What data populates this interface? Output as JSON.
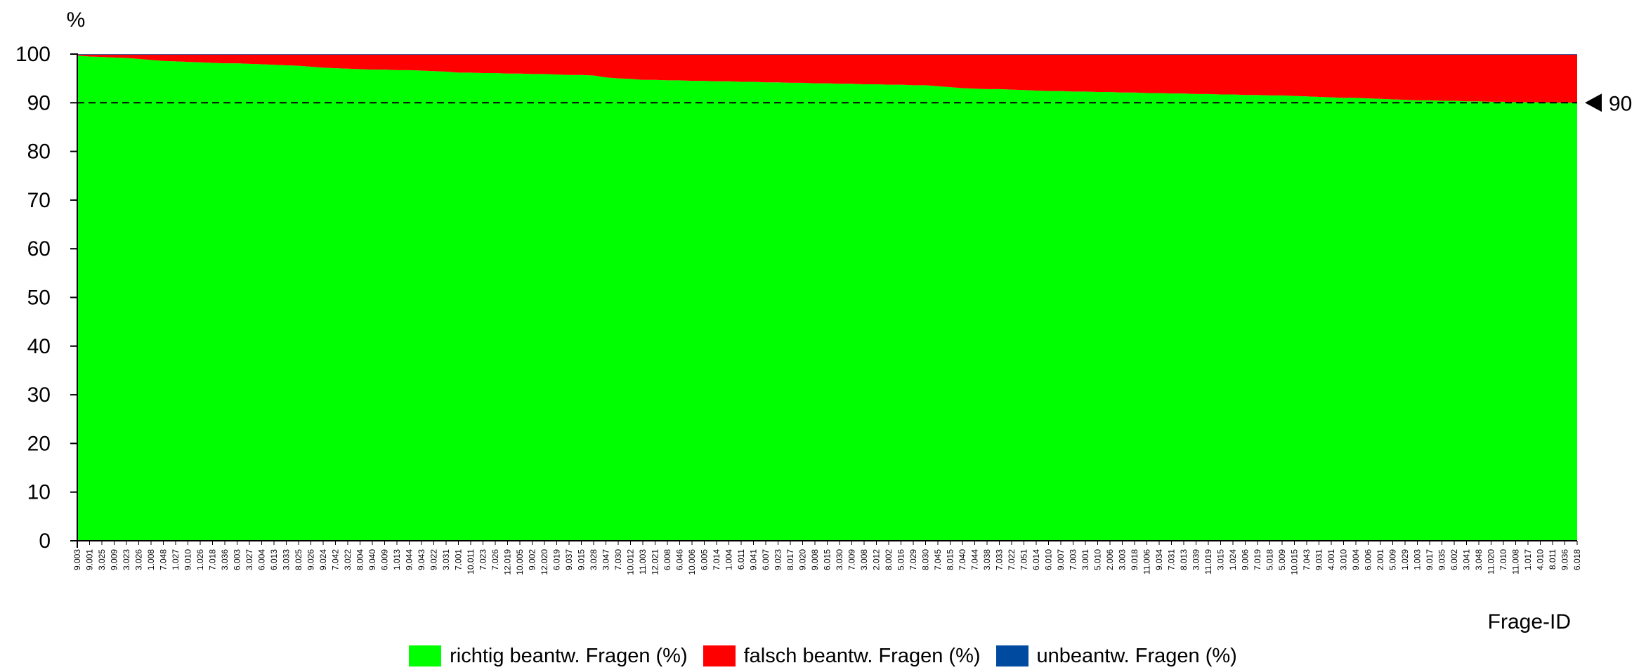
{
  "chart_data": {
    "type": "area",
    "stacked": true,
    "ylabel": "%",
    "xlabel": "Frage-ID",
    "ylim": [
      0,
      100
    ],
    "yticks": [
      0,
      10,
      20,
      30,
      40,
      50,
      60,
      70,
      80,
      90,
      100
    ],
    "grid": false,
    "legend_position": "bottom",
    "reference_line": {
      "value": 90,
      "label": "90",
      "style": "dashed"
    },
    "categories": [
      "9.003",
      "9.001",
      "3.025",
      "9.009",
      "3.023",
      "3.026",
      "1.008",
      "7.048",
      "1.027",
      "9.010",
      "1.026",
      "7.018",
      "3.036",
      "6.003",
      "3.027",
      "6.004",
      "6.013",
      "3.033",
      "8.025",
      "9.026",
      "9.024",
      "7.042",
      "3.022",
      "8.004",
      "9.040",
      "6.009",
      "1.013",
      "9.044",
      "9.043",
      "9.022",
      "3.031",
      "7.001",
      "10.011",
      "7.023",
      "7.026",
      "12.019",
      "10.005",
      "9.002",
      "12.020",
      "6.019",
      "9.037",
      "9.015",
      "3.028",
      "3.047",
      "7.030",
      "10.012",
      "11.003",
      "12.021",
      "6.008",
      "6.046",
      "10.006",
      "6.005",
      "7.014",
      "1.004",
      "6.011",
      "9.041",
      "6.007",
      "9.023",
      "8.017",
      "9.020",
      "9.008",
      "6.015",
      "3.030",
      "7.009",
      "3.008",
      "2.012",
      "8.002",
      "5.016",
      "7.029",
      "8.030",
      "7.045",
      "8.015",
      "7.040",
      "7.044",
      "3.038",
      "7.033",
      "7.022",
      "7.051",
      "6.014",
      "6.010",
      "9.007",
      "7.003",
      "3.001",
      "5.010",
      "2.006",
      "3.003",
      "9.018",
      "11.006",
      "9.034",
      "7.031",
      "8.013",
      "3.039",
      "11.019",
      "3.015",
      "1.024",
      "9.006",
      "7.019",
      "5.018",
      "5.009",
      "10.015",
      "7.043",
      "9.031",
      "4.001",
      "3.010",
      "9.004",
      "6.006",
      "2.001",
      "5.009",
      "1.029",
      "1.003",
      "9.017",
      "9.035",
      "6.002",
      "3.041",
      "3.048",
      "11.020",
      "7.010",
      "11.008",
      "1.017",
      "4.010",
      "8.011",
      "9.036",
      "6.018"
    ],
    "series": [
      {
        "name": "richtig beantw. Fragen (%)",
        "color": "#00ff00",
        "values": [
          99.7,
          99.5,
          99.4,
          99.3,
          99.2,
          99.0,
          98.8,
          98.6,
          98.5,
          98.4,
          98.3,
          98.2,
          98.1,
          98.1,
          98.0,
          97.9,
          97.8,
          97.7,
          97.6,
          97.4,
          97.2,
          97.1,
          97.0,
          96.9,
          96.8,
          96.8,
          96.7,
          96.7,
          96.6,
          96.5,
          96.4,
          96.2,
          96.2,
          96.1,
          96.1,
          96.0,
          96.0,
          95.9,
          95.9,
          95.8,
          95.7,
          95.7,
          95.6,
          95.2,
          95.0,
          94.9,
          94.7,
          94.7,
          94.6,
          94.6,
          94.5,
          94.5,
          94.4,
          94.4,
          94.3,
          94.3,
          94.2,
          94.2,
          94.1,
          94.1,
          94.0,
          94.0,
          93.9,
          93.9,
          93.8,
          93.8,
          93.7,
          93.7,
          93.6,
          93.6,
          93.4,
          93.2,
          93.0,
          92.9,
          92.8,
          92.8,
          92.7,
          92.6,
          92.5,
          92.4,
          92.4,
          92.3,
          92.3,
          92.2,
          92.2,
          92.1,
          92.1,
          92.0,
          92.0,
          91.9,
          91.9,
          91.8,
          91.8,
          91.7,
          91.7,
          91.6,
          91.6,
          91.5,
          91.5,
          91.4,
          91.3,
          91.2,
          91.1,
          91.0,
          91.0,
          90.9,
          90.8,
          90.7,
          90.6,
          90.5,
          90.5,
          90.4,
          90.4,
          90.3,
          90.3,
          90.2,
          90.2,
          90.1,
          90.1,
          90.1,
          90.0,
          90.0,
          90.0
        ],
        "unanswered_note": null
      },
      {
        "name": "falsch beantw. Fragen (%)",
        "color": "#ff0000",
        "values": [
          0.2,
          0.4,
          0.5,
          0.6,
          0.7,
          0.9,
          1.1,
          1.3,
          1.4,
          1.5,
          1.6,
          1.7,
          1.8,
          1.8,
          1.9,
          2.0,
          2.1,
          2.2,
          2.3,
          2.5,
          2.7,
          2.8,
          2.9,
          3.0,
          3.1,
          3.1,
          3.2,
          3.2,
          3.3,
          3.4,
          3.5,
          3.7,
          3.7,
          3.8,
          3.8,
          3.9,
          3.9,
          4.0,
          4.0,
          4.1,
          4.2,
          4.2,
          4.3,
          4.7,
          4.9,
          5.0,
          5.2,
          5.2,
          5.3,
          5.3,
          5.4,
          5.4,
          5.5,
          5.5,
          5.6,
          5.6,
          5.7,
          5.7,
          5.8,
          5.8,
          5.9,
          5.9,
          6.0,
          6.0,
          6.1,
          6.1,
          6.2,
          6.2,
          6.3,
          6.3,
          6.5,
          6.7,
          6.9,
          7.0,
          7.1,
          7.1,
          7.2,
          7.3,
          7.4,
          7.5,
          7.5,
          7.6,
          7.6,
          7.7,
          7.7,
          7.8,
          7.8,
          7.9,
          7.9,
          8.0,
          8.0,
          8.1,
          8.1,
          8.2,
          8.2,
          8.3,
          8.3,
          8.4,
          8.4,
          8.5,
          8.6,
          8.7,
          8.8,
          8.9,
          8.9,
          9.0,
          9.1,
          9.2,
          9.3,
          9.4,
          9.4,
          9.5,
          9.5,
          9.6,
          9.6,
          9.7,
          9.7,
          9.8,
          9.8,
          9.8,
          9.9,
          9.9,
          9.9
        ]
      },
      {
        "name": "unbeantw. Fragen (%)",
        "color": "#004a9f",
        "values": [
          0.1,
          0.1,
          0.1,
          0.1,
          0.1,
          0.1,
          0.1,
          0.1,
          0.1,
          0.1,
          0.1,
          0.1,
          0.1,
          0.1,
          0.1,
          0.1,
          0.1,
          0.1,
          0.1,
          0.1,
          0.1,
          0.1,
          0.1,
          0.1,
          0.1,
          0.1,
          0.1,
          0.1,
          0.1,
          0.1,
          0.1,
          0.1,
          0.1,
          0.1,
          0.1,
          0.1,
          0.1,
          0.1,
          0.1,
          0.1,
          0.1,
          0.1,
          0.1,
          0.1,
          0.1,
          0.1,
          0.1,
          0.1,
          0.1,
          0.1,
          0.1,
          0.1,
          0.1,
          0.1,
          0.1,
          0.1,
          0.1,
          0.1,
          0.1,
          0.1,
          0.1,
          0.1,
          0.1,
          0.1,
          0.1,
          0.1,
          0.1,
          0.1,
          0.1,
          0.1,
          0.1,
          0.1,
          0.1,
          0.1,
          0.1,
          0.1,
          0.1,
          0.1,
          0.1,
          0.1,
          0.1,
          0.1,
          0.1,
          0.1,
          0.1,
          0.1,
          0.1,
          0.1,
          0.1,
          0.1,
          0.1,
          0.1,
          0.1,
          0.1,
          0.1,
          0.1,
          0.1,
          0.1,
          0.1,
          0.1,
          0.1,
          0.1,
          0.1,
          0.1,
          0.1,
          0.1,
          0.1,
          0.1,
          0.1,
          0.1,
          0.1,
          0.1,
          0.1,
          0.1,
          0.1,
          0.1,
          0.1,
          0.1,
          0.1,
          0.1,
          0.1,
          0.1,
          0.1
        ]
      }
    ]
  },
  "legend": {
    "items": [
      {
        "label": "richtig beantw. Fragen (%)",
        "color": "#00ff00"
      },
      {
        "label": "falsch beantw. Fragen (%)",
        "color": "#ff0000"
      },
      {
        "label": "unbeantw. Fragen (%)",
        "color": "#004a9f"
      }
    ]
  }
}
